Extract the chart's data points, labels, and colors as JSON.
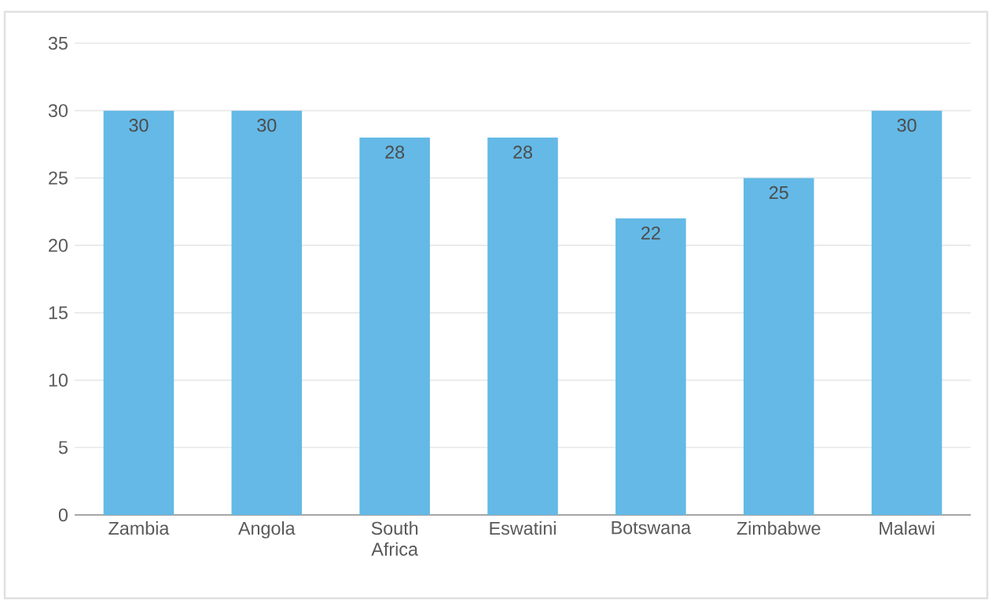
{
  "chart_data": {
    "type": "bar",
    "categories": [
      "Zambia",
      "Angola",
      "South Africa",
      "Eswatini",
      "Botswana",
      "Zimbabwe",
      "Malawi"
    ],
    "values": [
      30,
      30,
      28,
      28,
      22,
      25,
      30
    ],
    "color": "#64b9e6",
    "ylim": [
      0,
      35
    ],
    "yticks": [
      0,
      5,
      10,
      15,
      20,
      25,
      30,
      35
    ],
    "grid": "y",
    "data_labels": true
  }
}
